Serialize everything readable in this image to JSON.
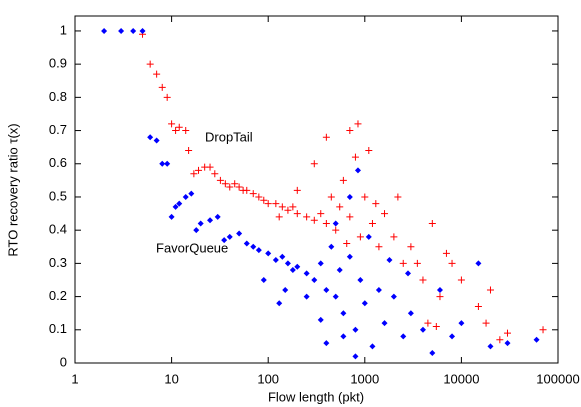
{
  "chart_data": {
    "type": "scatter",
    "xlabel": "Flow length (pkt)",
    "ylabel": "RTO recovery ratio τ(x)",
    "xlog": true,
    "xlim": [
      1,
      100000
    ],
    "xticks": [
      1,
      10,
      100,
      1000,
      10000,
      100000
    ],
    "ylim": [
      0,
      1.045
    ],
    "yticks": [
      0,
      0.1,
      0.2,
      0.3,
      0.4,
      0.5,
      0.6,
      0.7,
      0.8,
      0.9,
      1
    ],
    "series": [
      {
        "name": "DropTail",
        "color": "#ff0000",
        "marker": "plus",
        "x": [
          5,
          6,
          7,
          8,
          9,
          10,
          11,
          12,
          14,
          15,
          17,
          19,
          22,
          25,
          28,
          32,
          36,
          40,
          45,
          50,
          55,
          60,
          70,
          80,
          90,
          100,
          120,
          140,
          160,
          180,
          200,
          250,
          300,
          350,
          400,
          450,
          500,
          550,
          600,
          700,
          800,
          900,
          1000,
          1200,
          1400,
          1600,
          2000,
          2500,
          3000,
          4000,
          5000,
          6000,
          8000,
          10000,
          15000,
          20000,
          30000,
          70000,
          400,
          700,
          850,
          1100,
          300,
          200,
          130,
          650,
          1300,
          2200,
          3500,
          4500,
          5500,
          7000,
          25000,
          18000
        ],
        "values": [
          0.99,
          0.9,
          0.87,
          0.83,
          0.8,
          0.72,
          0.7,
          0.71,
          0.7,
          0.64,
          0.57,
          0.58,
          0.59,
          0.59,
          0.57,
          0.55,
          0.54,
          0.53,
          0.54,
          0.53,
          0.52,
          0.52,
          0.51,
          0.5,
          0.49,
          0.48,
          0.48,
          0.47,
          0.46,
          0.47,
          0.45,
          0.44,
          0.43,
          0.45,
          0.42,
          0.5,
          0.4,
          0.47,
          0.55,
          0.44,
          0.62,
          0.38,
          0.5,
          0.42,
          0.35,
          0.45,
          0.38,
          0.3,
          0.35,
          0.25,
          0.42,
          0.2,
          0.3,
          0.25,
          0.17,
          0.22,
          0.09,
          0.1,
          0.68,
          0.7,
          0.72,
          0.64,
          0.6,
          0.52,
          0.44,
          0.36,
          0.48,
          0.5,
          0.3,
          0.12,
          0.11,
          0.33,
          0.07,
          0.12
        ]
      },
      {
        "name": "FavorQueue",
        "color": "#0000ff",
        "marker": "diamond",
        "x": [
          2,
          3,
          4,
          5,
          6,
          7,
          8,
          9,
          10,
          11,
          12,
          14,
          16,
          18,
          20,
          25,
          30,
          35,
          40,
          50,
          60,
          70,
          80,
          100,
          120,
          140,
          160,
          180,
          200,
          250,
          300,
          350,
          400,
          450,
          500,
          550,
          600,
          700,
          800,
          900,
          1000,
          1200,
          1400,
          1600,
          2000,
          2500,
          3000,
          4000,
          5000,
          6000,
          8000,
          10000,
          15000,
          20000,
          30000,
          60000,
          150,
          250,
          500,
          700,
          850,
          1100,
          350,
          600,
          1800,
          2800,
          400,
          130,
          90,
          800
        ],
        "values": [
          1,
          1,
          1,
          1,
          0.68,
          0.67,
          0.6,
          0.6,
          0.44,
          0.47,
          0.48,
          0.5,
          0.51,
          0.4,
          0.42,
          0.43,
          0.44,
          0.37,
          0.38,
          0.39,
          0.36,
          0.35,
          0.34,
          0.33,
          0.31,
          0.32,
          0.3,
          0.28,
          0.29,
          0.27,
          0.25,
          0.3,
          0.22,
          0.35,
          0.2,
          0.28,
          0.15,
          0.32,
          0.1,
          0.25,
          0.18,
          0.05,
          0.22,
          0.12,
          0.2,
          0.08,
          0.15,
          0.1,
          0.03,
          0.22,
          0.08,
          0.12,
          0.3,
          0.05,
          0.06,
          0.07,
          0.22,
          0.2,
          0.42,
          0.5,
          0.58,
          0.38,
          0.13,
          0.08,
          0.31,
          0.27,
          0.06,
          0.18,
          0.25,
          0.02
        ]
      }
    ]
  }
}
